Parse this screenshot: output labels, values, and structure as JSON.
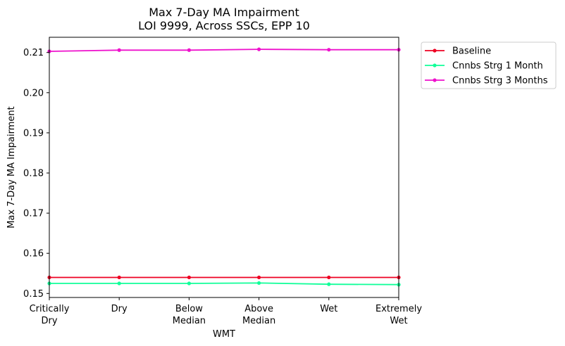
{
  "chart_data": {
    "type": "line",
    "title_lines": [
      "Max 7-Day MA Impairment",
      "LOI 9999, Across SSCs, EPP 10"
    ],
    "xlabel": "WMT",
    "ylabel": "Max 7-Day MA Impairment",
    "categories": [
      [
        "Critically",
        "Dry"
      ],
      [
        "Dry"
      ],
      [
        "Below",
        "Median"
      ],
      [
        "Above",
        "Median"
      ],
      [
        "Wet"
      ],
      [
        "Extremely",
        "Wet"
      ]
    ],
    "ylim": [
      0.149,
      0.2138
    ],
    "yticks": [
      0.15,
      0.16,
      0.17,
      0.18,
      0.19,
      0.2,
      0.21
    ],
    "ytick_labels": [
      "0.15",
      "0.16",
      "0.17",
      "0.18",
      "0.19",
      "0.20",
      "0.21"
    ],
    "grid": false,
    "legend_position": "outside-top-right",
    "series": [
      {
        "name": "Baseline",
        "color": "#ee0022",
        "values": [
          0.154,
          0.154,
          0.154,
          0.154,
          0.154,
          0.154
        ]
      },
      {
        "name": "Cnnbs Strg 1 Month",
        "color": "#11ff99",
        "values": [
          0.1525,
          0.1525,
          0.1525,
          0.1526,
          0.1523,
          0.1522
        ]
      },
      {
        "name": "Cnnbs Strg 3 Months",
        "color": "#ee11cc",
        "values": [
          0.2103,
          0.2106,
          0.2106,
          0.2108,
          0.2107,
          0.2107
        ]
      }
    ]
  }
}
